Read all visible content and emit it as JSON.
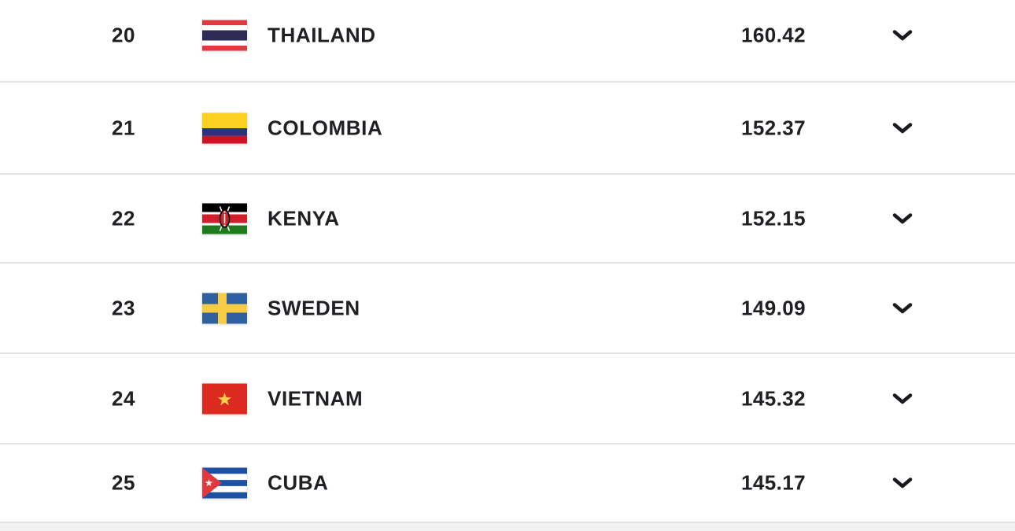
{
  "theme": {
    "text_color": "#202024",
    "divider_color": "#e4e4e5",
    "footer_band_color": "#f2f2f3",
    "background_color": "#ffffff"
  },
  "ranking_table": {
    "rows": [
      {
        "rank": "20",
        "country": "THAILAND",
        "points": "160.42",
        "flag": "thailand",
        "expand_icon": "chevron-down-icon"
      },
      {
        "rank": "21",
        "country": "COLOMBIA",
        "points": "152.37",
        "flag": "colombia",
        "expand_icon": "chevron-down-icon"
      },
      {
        "rank": "22",
        "country": "KENYA",
        "points": "152.15",
        "flag": "kenya",
        "expand_icon": "chevron-down-icon"
      },
      {
        "rank": "23",
        "country": "SWEDEN",
        "points": "149.09",
        "flag": "sweden",
        "expand_icon": "chevron-down-icon"
      },
      {
        "rank": "24",
        "country": "VIETNAM",
        "points": "145.32",
        "flag": "vietnam",
        "expand_icon": "chevron-down-icon"
      },
      {
        "rank": "25",
        "country": "CUBA",
        "points": "145.17",
        "flag": "cuba",
        "expand_icon": "chevron-down-icon"
      }
    ]
  }
}
